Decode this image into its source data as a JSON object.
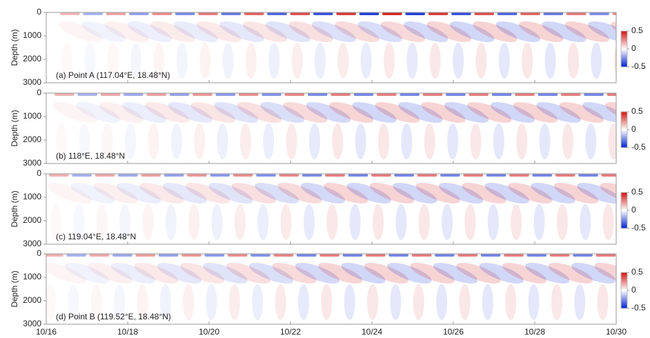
{
  "chart_data": [
    {
      "type": "contour",
      "label": "(a) Point A (117.04°E, 18.48°N)",
      "ylabel": "Depth (m)",
      "ylim": [
        3000,
        0
      ],
      "yticks": [
        0,
        1000,
        2000,
        3000
      ],
      "clim": [
        -0.5,
        0.5
      ],
      "cticks": [
        -0.5,
        0,
        0.5
      ],
      "colormap": [
        "#0020d0",
        "#ffffff",
        "#d01010"
      ]
    },
    {
      "type": "contour",
      "label": "(b) 118°E, 18.48°N",
      "ylabel": "Depth (m)",
      "ylim": [
        3000,
        0
      ],
      "yticks": [
        0,
        1000,
        2000,
        3000
      ],
      "clim": [
        -0.5,
        0.5
      ],
      "cticks": [
        -0.5,
        0,
        0.5
      ],
      "colormap": [
        "#0020d0",
        "#ffffff",
        "#d01010"
      ]
    },
    {
      "type": "contour",
      "label": "(c) 119.04°E, 18.48°N",
      "ylabel": "Depth (m)",
      "ylim": [
        3000,
        0
      ],
      "yticks": [
        0,
        1000,
        2000,
        3000
      ],
      "clim": [
        -0.5,
        0.5
      ],
      "cticks": [
        -0.5,
        0,
        0.5
      ],
      "colormap": [
        "#0020d0",
        "#ffffff",
        "#d01010"
      ]
    },
    {
      "type": "contour",
      "label": "(d) Point B (119.52°E, 18.48°N)",
      "ylabel": "Depth (m)",
      "ylim": [
        3000,
        0
      ],
      "yticks": [
        0,
        1000,
        2000,
        3000
      ],
      "clim": [
        -0.5,
        0.5
      ],
      "cticks": [
        -0.5,
        0,
        0.5
      ],
      "colormap": [
        "#0020d0",
        "#ffffff",
        "#d01010"
      ],
      "xticks": [
        "10/16",
        "10/18",
        "10/20",
        "10/22",
        "10/24",
        "10/26",
        "10/28",
        "10/30"
      ]
    }
  ]
}
